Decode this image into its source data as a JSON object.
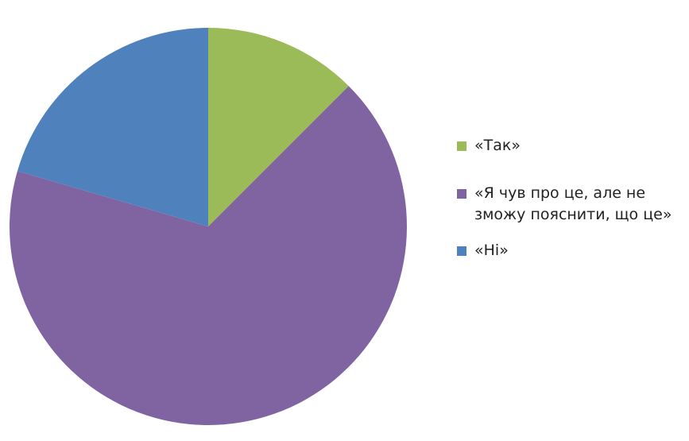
{
  "chart_data": {
    "type": "pie",
    "title": "",
    "start_angle_deg": 0,
    "direction": "clockwise",
    "legend_position": "right",
    "slices": [
      {
        "label": "«Так»",
        "value": 12.5,
        "color": "#9bbb59"
      },
      {
        "label": "«Я чув про це, але не зможу пояснити, що це»",
        "value": 67,
        "color": "#8064a2"
      },
      {
        "label": "«Ні»",
        "value": 20.5,
        "color": "#4f81bd"
      }
    ]
  }
}
